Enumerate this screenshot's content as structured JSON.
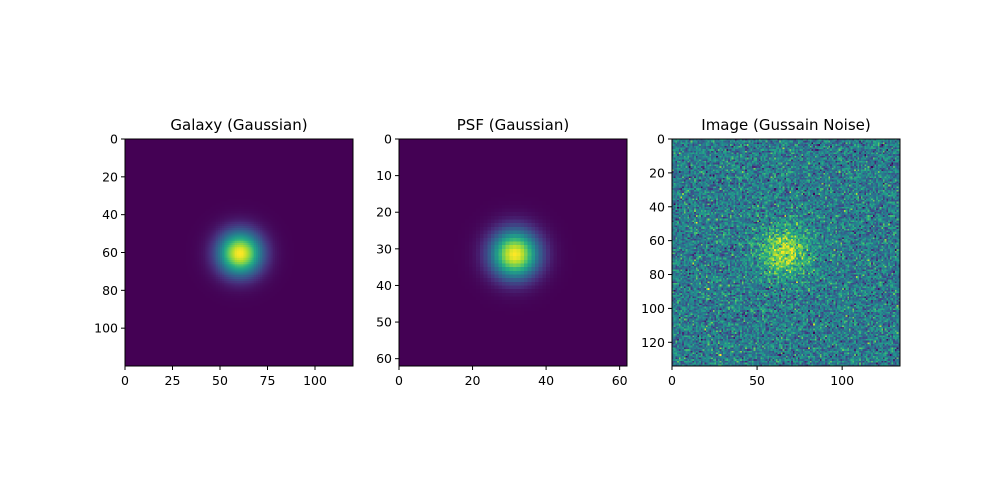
{
  "chart_data": [
    {
      "type": "heatmap",
      "title": "Galaxy (Gaussian)",
      "xlabel": "",
      "ylabel": "",
      "size": 120,
      "xlim": [
        0,
        120
      ],
      "ylim": [
        120,
        0
      ],
      "xticks": [
        0,
        25,
        50,
        75,
        100
      ],
      "yticks": [
        0,
        20,
        40,
        60,
        80,
        100
      ],
      "center": [
        60,
        60
      ],
      "sigma": 8,
      "noise": 0,
      "colormap": "viridis",
      "grid": false
    },
    {
      "type": "heatmap",
      "title": "PSF (Gaussian)",
      "xlabel": "",
      "ylabel": "",
      "size": 62,
      "xlim": [
        0,
        62
      ],
      "ylim": [
        62,
        0
      ],
      "xticks": [
        0,
        20,
        40,
        60
      ],
      "yticks": [
        0,
        10,
        20,
        30,
        40,
        50,
        60
      ],
      "center": [
        31,
        31
      ],
      "sigma": 4.5,
      "noise": 0,
      "colormap": "viridis",
      "grid": false
    },
    {
      "type": "heatmap",
      "title": "Image (Gussain Noise)",
      "xlabel": "",
      "ylabel": "",
      "size": 134,
      "xlim": [
        0,
        134
      ],
      "ylim": [
        134,
        0
      ],
      "xticks": [
        0,
        50,
        100
      ],
      "yticks": [
        0,
        20,
        40,
        60,
        80,
        100,
        120
      ],
      "center": [
        66,
        66
      ],
      "sigma": 10,
      "noise": 0.14,
      "baseline": 0.42,
      "colormap": "viridis",
      "grid": false
    }
  ]
}
